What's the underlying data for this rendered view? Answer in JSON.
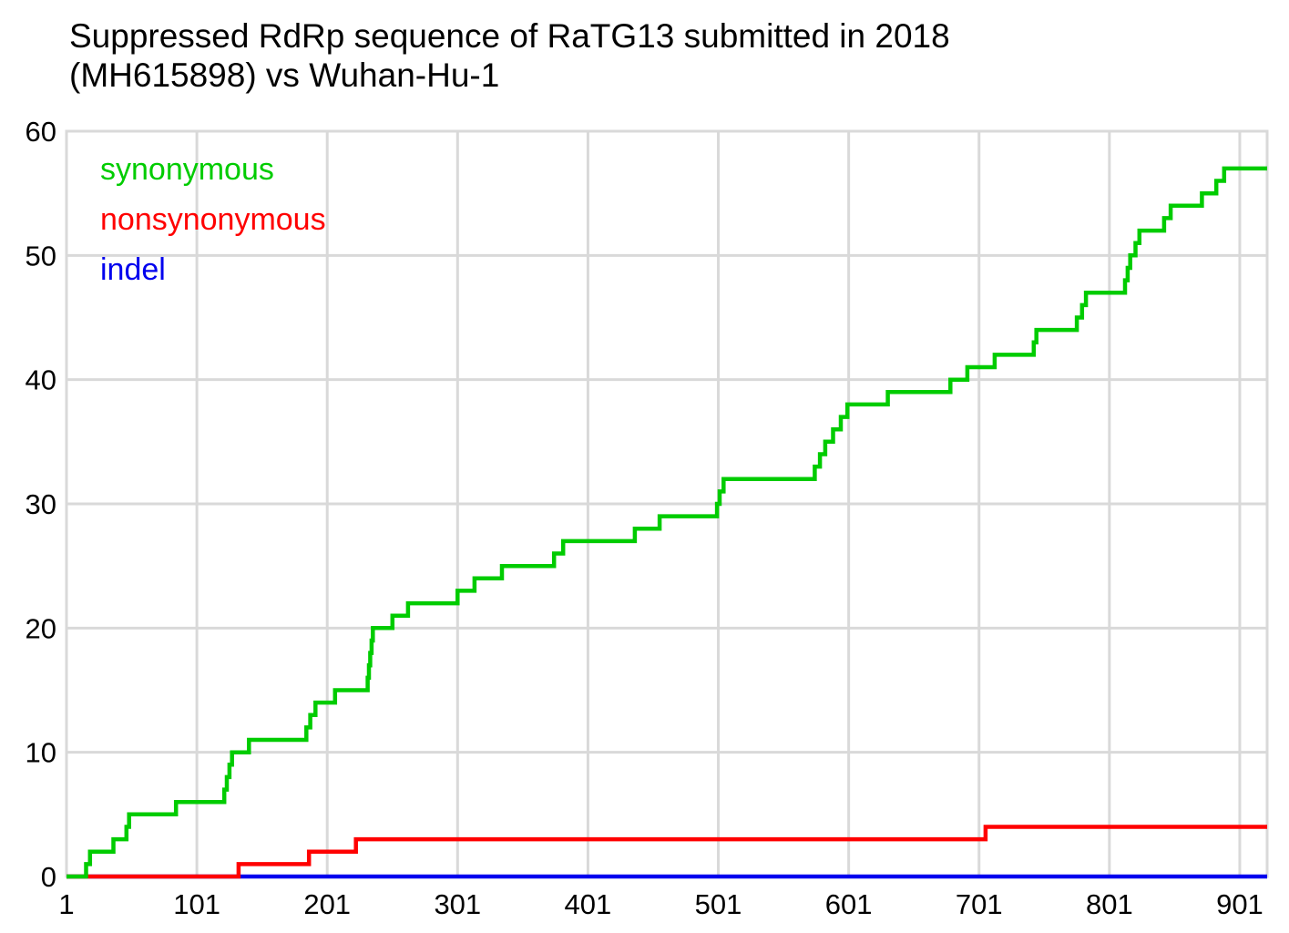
{
  "title_lines": [
    "Suppressed RdRp sequence of RaTG13 submitted in 2018",
    "(MH615898) vs Wuhan-Hu-1"
  ],
  "chart_data": {
    "type": "line",
    "step": true,
    "title": "Suppressed RdRp sequence of RaTG13 submitted in 2018 (MH615898) vs Wuhan-Hu-1",
    "xlabel": "",
    "ylabel": "",
    "xlim": [
      1,
      922
    ],
    "ylim": [
      0,
      60
    ],
    "x_ticks": [
      1,
      101,
      201,
      301,
      401,
      501,
      601,
      701,
      801,
      901
    ],
    "y_ticks": [
      0,
      10,
      20,
      30,
      40,
      50,
      60
    ],
    "grid": true,
    "legend_position": "top-left",
    "series": [
      {
        "name": "synonymous",
        "color": "#00cc00",
        "x": [
          1,
          16,
          19,
          37,
          47,
          49,
          85,
          122,
          124,
          126,
          128,
          141,
          149,
          185,
          188,
          192,
          207,
          212,
          232,
          233,
          234,
          235,
          236,
          237,
          238,
          240,
          251,
          263,
          301,
          314,
          335,
          375,
          382,
          437,
          456,
          500,
          501,
          502,
          505,
          575,
          579,
          583,
          589,
          595,
          600,
          631,
          679,
          684,
          692,
          713,
          743,
          745,
          776,
          780,
          783,
          813,
          815,
          817,
          819,
          821,
          824,
          843,
          848,
          872,
          883,
          889,
          922
        ],
        "y": [
          0,
          1,
          2,
          3,
          4,
          5,
          6,
          7,
          8,
          9,
          10,
          11,
          11,
          12,
          13,
          14,
          15,
          15,
          16,
          17,
          18,
          19,
          20,
          20,
          20,
          20,
          21,
          22,
          23,
          24,
          25,
          26,
          27,
          28,
          29,
          30,
          30,
          31,
          32,
          33,
          34,
          35,
          36,
          37,
          38,
          39,
          40,
          40,
          41,
          42,
          43,
          44,
          45,
          46,
          47,
          48,
          49,
          50,
          50,
          51,
          52,
          53,
          54,
          55,
          56,
          57,
          57
        ]
      },
      {
        "name": "nonsynonymous",
        "color": "#ff0000",
        "x": [
          1,
          133,
          187,
          223,
          706,
          922
        ],
        "y": [
          0,
          1,
          2,
          3,
          4,
          4
        ]
      },
      {
        "name": "indel",
        "color": "#0000ee",
        "x": [
          1,
          922
        ],
        "y": [
          0,
          0
        ]
      }
    ]
  }
}
